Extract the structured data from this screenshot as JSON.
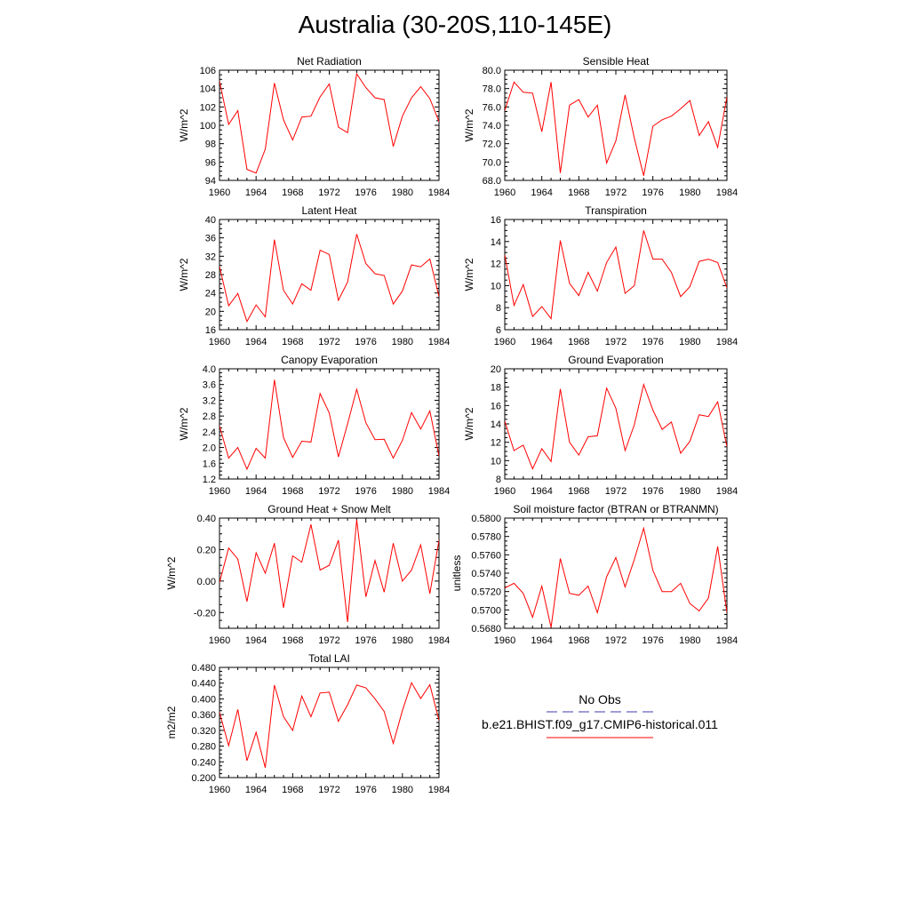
{
  "title": "Australia (30-20S,110-145E)",
  "colors": {
    "model": "#ff0000",
    "obs": "#3c3cb4",
    "axis": "#000000"
  },
  "legend": {
    "obs_label": "No Obs",
    "model_label": "b.e21.BHIST.f09_g17.CMIP6-historical.011"
  },
  "chart_data": [
    {
      "type": "line",
      "title": "Net Radiation",
      "ylabel": "W/m^2",
      "ylim": [
        94,
        106
      ],
      "yticks": [
        "94",
        "96",
        "98",
        "100",
        "102",
        "104",
        "106"
      ],
      "ytick_values": [
        94,
        96,
        98,
        100,
        102,
        104,
        106
      ],
      "xlim": [
        1960,
        1984
      ],
      "xticks": [
        "1960",
        "1964",
        "1968",
        "1972",
        "1976",
        "1980",
        "1984"
      ],
      "x": [
        1960,
        1961,
        1962,
        1963,
        1964,
        1965,
        1966,
        1967,
        1968,
        1969,
        1970,
        1971,
        1972,
        1973,
        1974,
        1975,
        1976,
        1977,
        1978,
        1979,
        1980,
        1981,
        1982,
        1983,
        1984
      ],
      "series": [
        {
          "values": [
            104.8,
            100.1,
            101.6,
            95.2,
            94.8,
            97.4,
            104.6,
            100.6,
            98.4,
            100.9,
            101.0,
            103.1,
            104.5,
            99.8,
            99.2,
            105.6,
            104.1,
            103.0,
            102.8,
            97.7,
            101.0,
            103.0,
            104.2,
            102.9,
            100.4
          ]
        }
      ]
    },
    {
      "type": "line",
      "title": "Sensible Heat",
      "ylabel": "W/m^2",
      "ylim": [
        68,
        80
      ],
      "yticks": [
        "68.0",
        "70.0",
        "72.0",
        "74.0",
        "76.0",
        "78.0",
        "80.0"
      ],
      "ytick_values": [
        68,
        70,
        72,
        74,
        76,
        78,
        80
      ],
      "xlim": [
        1960,
        1984
      ],
      "xticks": [
        "1960",
        "1964",
        "1968",
        "1972",
        "1976",
        "1980",
        "1984"
      ],
      "x": [
        1960,
        1961,
        1962,
        1963,
        1964,
        1965,
        1966,
        1967,
        1968,
        1969,
        1970,
        1971,
        1972,
        1973,
        1974,
        1975,
        1976,
        1977,
        1978,
        1979,
        1980,
        1981,
        1982,
        1983,
        1984
      ],
      "series": [
        {
          "values": [
            75.6,
            78.7,
            77.6,
            77.5,
            73.3,
            78.7,
            68.8,
            76.2,
            76.8,
            74.9,
            76.2,
            69.9,
            72.3,
            77.3,
            72.6,
            68.5,
            73.9,
            74.6,
            75.0,
            75.8,
            76.7,
            72.9,
            74.4,
            71.6,
            77.1
          ]
        }
      ]
    },
    {
      "type": "line",
      "title": "Latent Heat",
      "ylabel": "W/m^2",
      "ylim": [
        16,
        40
      ],
      "yticks": [
        "16",
        "20",
        "24",
        "28",
        "32",
        "36",
        "40"
      ],
      "ytick_values": [
        16,
        20,
        24,
        28,
        32,
        36,
        40
      ],
      "xlim": [
        1960,
        1984
      ],
      "xticks": [
        "1960",
        "1964",
        "1968",
        "1972",
        "1976",
        "1980",
        "1984"
      ],
      "x": [
        1960,
        1961,
        1962,
        1963,
        1964,
        1965,
        1966,
        1967,
        1968,
        1969,
        1970,
        1971,
        1972,
        1973,
        1974,
        1975,
        1976,
        1977,
        1978,
        1979,
        1980,
        1981,
        1982,
        1983,
        1984
      ],
      "series": [
        {
          "values": [
            29.8,
            21.2,
            23.9,
            17.8,
            21.4,
            18.8,
            35.6,
            24.6,
            21.6,
            26.0,
            24.6,
            33.3,
            32.4,
            22.4,
            26.4,
            36.8,
            30.4,
            28.2,
            27.8,
            21.6,
            24.4,
            30.1,
            29.7,
            31.4,
            23.2
          ]
        }
      ]
    },
    {
      "type": "line",
      "title": "Transpiration",
      "ylabel": "W/m^2",
      "ylim": [
        6,
        16
      ],
      "yticks": [
        "6",
        "8",
        "10",
        "12",
        "14",
        "16"
      ],
      "ytick_values": [
        6,
        8,
        10,
        12,
        14,
        16
      ],
      "xlim": [
        1960,
        1984
      ],
      "xticks": [
        "1960",
        "1964",
        "1968",
        "1972",
        "1976",
        "1980",
        "1984"
      ],
      "x": [
        1960,
        1961,
        1962,
        1963,
        1964,
        1965,
        1966,
        1967,
        1968,
        1969,
        1970,
        1971,
        1972,
        1973,
        1974,
        1975,
        1976,
        1977,
        1978,
        1979,
        1980,
        1981,
        1982,
        1983,
        1984
      ],
      "series": [
        {
          "values": [
            12.8,
            8.2,
            10.1,
            7.2,
            8.1,
            7.0,
            14.1,
            10.2,
            9.1,
            11.2,
            9.5,
            12.1,
            13.5,
            9.3,
            10.0,
            15.0,
            12.4,
            12.4,
            11.2,
            9.0,
            9.9,
            12.2,
            12.4,
            12.1,
            9.8
          ]
        }
      ]
    },
    {
      "type": "line",
      "title": "Canopy Evaporation",
      "ylabel": "W/m^2",
      "ylim": [
        1.2,
        4.0
      ],
      "yticks": [
        "1.2",
        "1.6",
        "2.0",
        "2.4",
        "2.8",
        "3.2",
        "3.6",
        "4.0"
      ],
      "ytick_values": [
        1.2,
        1.6,
        2.0,
        2.4,
        2.8,
        3.2,
        3.6,
        4.0
      ],
      "xlim": [
        1960,
        1984
      ],
      "xticks": [
        "1960",
        "1964",
        "1968",
        "1972",
        "1976",
        "1980",
        "1984"
      ],
      "x": [
        1960,
        1961,
        1962,
        1963,
        1964,
        1965,
        1966,
        1967,
        1968,
        1969,
        1970,
        1971,
        1972,
        1973,
        1974,
        1975,
        1976,
        1977,
        1978,
        1979,
        1980,
        1981,
        1982,
        1983,
        1984
      ],
      "series": [
        {
          "values": [
            2.55,
            1.73,
            2.0,
            1.45,
            1.98,
            1.73,
            3.72,
            2.25,
            1.75,
            2.16,
            2.14,
            3.37,
            2.88,
            1.76,
            2.6,
            3.48,
            2.63,
            2.2,
            2.21,
            1.73,
            2.18,
            2.89,
            2.47,
            2.93,
            1.78
          ]
        }
      ]
    },
    {
      "type": "line",
      "title": "Ground Evaporation",
      "ylabel": "W/m^2",
      "ylim": [
        8,
        20
      ],
      "yticks": [
        "8",
        "10",
        "12",
        "14",
        "16",
        "18",
        "20"
      ],
      "ytick_values": [
        8,
        10,
        12,
        14,
        16,
        18,
        20
      ],
      "xlim": [
        1960,
        1984
      ],
      "xticks": [
        "1960",
        "1964",
        "1968",
        "1972",
        "1976",
        "1980",
        "1984"
      ],
      "x": [
        1960,
        1961,
        1962,
        1963,
        1964,
        1965,
        1966,
        1967,
        1968,
        1969,
        1970,
        1971,
        1972,
        1973,
        1974,
        1975,
        1976,
        1977,
        1978,
        1979,
        1980,
        1981,
        1982,
        1983,
        1984
      ],
      "series": [
        {
          "values": [
            14.3,
            11.1,
            11.7,
            9.1,
            11.3,
            9.9,
            17.8,
            12.0,
            10.6,
            12.6,
            12.7,
            17.9,
            15.7,
            11.1,
            13.9,
            18.3,
            15.5,
            13.4,
            14.2,
            10.8,
            12.1,
            15.0,
            14.8,
            16.4,
            11.5
          ]
        }
      ]
    },
    {
      "type": "line",
      "title": "Ground Heat + Snow Melt",
      "ylabel": "W/m^2",
      "ylim": [
        -0.3,
        0.4
      ],
      "yticks": [
        "-0.20",
        "0.00",
        "0.20",
        "0.40"
      ],
      "ytick_values": [
        -0.2,
        0.0,
        0.2,
        0.4
      ],
      "xlim": [
        1960,
        1984
      ],
      "xticks": [
        "1960",
        "1964",
        "1968",
        "1972",
        "1976",
        "1980",
        "1984"
      ],
      "x": [
        1960,
        1961,
        1962,
        1963,
        1964,
        1965,
        1966,
        1967,
        1968,
        1969,
        1970,
        1971,
        1972,
        1973,
        1974,
        1975,
        1976,
        1977,
        1978,
        1979,
        1980,
        1981,
        1982,
        1983,
        1984
      ],
      "series": [
        {
          "values": [
            -0.01,
            0.21,
            0.14,
            -0.13,
            0.18,
            0.05,
            0.24,
            -0.17,
            0.16,
            0.12,
            0.36,
            0.07,
            0.1,
            0.26,
            -0.26,
            0.39,
            -0.1,
            0.13,
            -0.07,
            0.24,
            0.0,
            0.07,
            0.23,
            -0.08,
            0.26
          ]
        }
      ]
    },
    {
      "type": "line",
      "title": "Soil moisture factor (BTRAN or BTRANMN)",
      "ylabel": "unitless",
      "ylim": [
        0.568,
        0.58
      ],
      "yticks": [
        "0.5680",
        "0.5700",
        "0.5720",
        "0.5740",
        "0.5760",
        "0.5780",
        "0.5800"
      ],
      "ytick_values": [
        0.568,
        0.57,
        0.572,
        0.574,
        0.576,
        0.578,
        0.58
      ],
      "xlim": [
        1960,
        1984
      ],
      "xticks": [
        "1960",
        "1964",
        "1968",
        "1972",
        "1976",
        "1980",
        "1984"
      ],
      "x": [
        1960,
        1961,
        1962,
        1963,
        1964,
        1965,
        1966,
        1967,
        1968,
        1969,
        1970,
        1971,
        1972,
        1973,
        1974,
        1975,
        1976,
        1977,
        1978,
        1979,
        1980,
        1981,
        1982,
        1983,
        1984
      ],
      "series": [
        {
          "values": [
            0.5724,
            0.5729,
            0.5718,
            0.5692,
            0.5726,
            0.5681,
            0.5756,
            0.5718,
            0.5716,
            0.5726,
            0.5697,
            0.5736,
            0.5757,
            0.5725,
            0.5755,
            0.5789,
            0.5743,
            0.572,
            0.572,
            0.5729,
            0.5707,
            0.5699,
            0.5713,
            0.5769,
            0.5697
          ]
        }
      ]
    },
    {
      "type": "line",
      "title": "Total LAI",
      "ylabel": "m2/m2",
      "ylim": [
        0.2,
        0.48
      ],
      "yticks": [
        "0.200",
        "0.240",
        "0.280",
        "0.320",
        "0.360",
        "0.400",
        "0.440",
        "0.480"
      ],
      "ytick_values": [
        0.2,
        0.24,
        0.28,
        0.32,
        0.36,
        0.4,
        0.44,
        0.48
      ],
      "xlim": [
        1960,
        1984
      ],
      "xticks": [
        "1960",
        "1964",
        "1968",
        "1972",
        "1976",
        "1980",
        "1984"
      ],
      "x": [
        1960,
        1961,
        1962,
        1963,
        1964,
        1965,
        1966,
        1967,
        1968,
        1969,
        1970,
        1971,
        1972,
        1973,
        1974,
        1975,
        1976,
        1977,
        1978,
        1979,
        1980,
        1981,
        1982,
        1983,
        1984
      ],
      "series": [
        {
          "values": [
            0.366,
            0.281,
            0.373,
            0.243,
            0.315,
            0.225,
            0.435,
            0.355,
            0.32,
            0.407,
            0.355,
            0.415,
            0.417,
            0.343,
            0.385,
            0.435,
            0.428,
            0.4,
            0.368,
            0.287,
            0.37,
            0.441,
            0.401,
            0.436,
            0.345
          ]
        }
      ]
    }
  ]
}
